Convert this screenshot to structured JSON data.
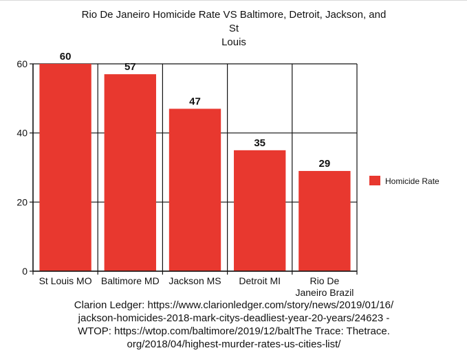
{
  "chart_data": {
    "type": "bar",
    "title_lines": [
      "Rio De Janeiro Homicide Rate VS Baltimore, Detroit, Jackson, and St",
      "Louis"
    ],
    "xlabel": "",
    "ylabel": "",
    "categories": [
      [
        "St Louis MO"
      ],
      [
        "Baltimore MD"
      ],
      [
        "Jackson MS"
      ],
      [
        "Detroit MI"
      ],
      [
        "Rio De",
        "Janeiro Brazil"
      ]
    ],
    "series": [
      {
        "name": "Homicide Rate",
        "values": [
          60,
          57,
          47,
          35,
          29
        ],
        "color": "#e8382f"
      }
    ],
    "data_labels": [
      "60",
      "57",
      "47",
      "35",
      "29"
    ],
    "ylim": [
      0,
      60
    ],
    "yticks": [
      0,
      20,
      40,
      60
    ],
    "grid": true,
    "legend_position": "right"
  },
  "source": {
    "lines": [
      "Clarion Ledger: https://www.clarionledger.com/story/news/2019/01/16/",
      "jackson-homicides-2018-mark-citys-deadliest-year-20-years/24623 -",
      "WTOP: https://wtop.com/baltimore/2019/12/baltThe  Trace: Thetrace.",
      "org/2018/04/highest-murder-rates-us-cities-list/"
    ]
  }
}
